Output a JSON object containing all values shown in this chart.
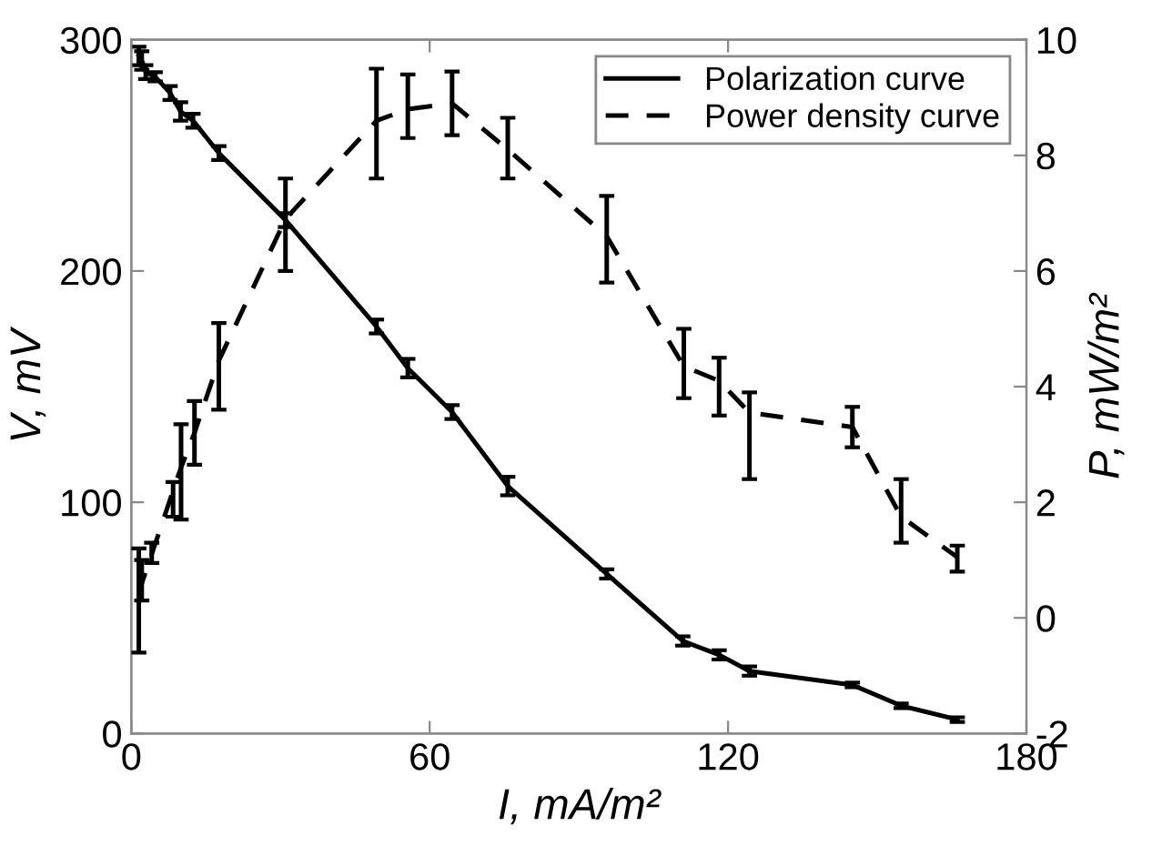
{
  "chart_data": {
    "type": "line",
    "xlabel": "I, mA/m²",
    "ylabel": "V, mV",
    "y2label": "P, mW/m²",
    "xlim": [
      0,
      180
    ],
    "xticks": [
      0,
      60,
      120,
      180
    ],
    "ylim": [
      0,
      300
    ],
    "yticks": [
      0,
      100,
      200,
      300
    ],
    "y2lim": [
      -2,
      10
    ],
    "y2ticks": [
      {
        "value": -2,
        "label": "-2"
      },
      0,
      2,
      4,
      6,
      8,
      10
    ],
    "legend": "top right",
    "grid": false,
    "marker": "none",
    "series": [
      {
        "name": "Polarization curve",
        "color": "#000000",
        "line_style": "solid",
        "axis": "y",
        "x": [
          1.5,
          2.1,
          2.9,
          4.8,
          7.8,
          9.9,
          12.4,
          17.6,
          31,
          49.3,
          55.6,
          64.5,
          75.7,
          95.6,
          110.9,
          118.2,
          124.3,
          145,
          154.8,
          166.1
        ],
        "values": [
          293,
          291,
          286,
          284,
          277,
          269,
          265,
          251,
          222,
          176,
          158,
          139,
          107,
          69,
          40,
          34,
          27,
          21,
          12,
          6
        ],
        "errors": [
          4,
          4,
          3,
          2,
          3,
          4,
          3,
          3,
          3,
          3,
          4,
          3,
          4,
          2,
          2,
          2,
          2,
          1,
          1,
          1
        ]
      },
      {
        "name": "Power density curve",
        "color": "#000000",
        "line_style": "dashed",
        "axis": "y2",
        "x": [
          1.5,
          2.1,
          4.1,
          8.4,
          10,
          12.7,
          17.6,
          31,
          49.3,
          55.6,
          64.5,
          75.7,
          95.6,
          111.1,
          118.2,
          124.3,
          145,
          154.8,
          166.1
        ],
        "values": [
          0.4,
          0.6,
          1.1,
          2.2,
          2.6,
          3.2,
          4.45,
          6.9,
          8.6,
          8.8,
          8.9,
          8.1,
          6.6,
          4.35,
          4.1,
          3.55,
          3.3,
          1.75,
          1.05
        ],
        "errors": [
          [
            -0.6,
            1.2
          ],
          [
            0.3,
            1.0
          ],
          [
            0.95,
            1.3
          ],
          [
            1.75,
            2.35
          ],
          [
            1.7,
            3.35
          ],
          [
            2.65,
            3.75
          ],
          [
            3.6,
            5.1
          ],
          [
            6.0,
            7.6
          ],
          [
            7.6,
            9.5
          ],
          [
            8.3,
            9.4
          ],
          [
            8.35,
            9.45
          ],
          [
            7.6,
            8.65
          ],
          [
            5.8,
            7.3
          ],
          [
            3.8,
            5.0
          ],
          [
            3.5,
            4.5
          ],
          [
            2.4,
            3.9
          ],
          [
            2.95,
            3.65
          ],
          [
            1.3,
            2.4
          ],
          [
            0.8,
            1.25
          ]
        ]
      }
    ]
  }
}
